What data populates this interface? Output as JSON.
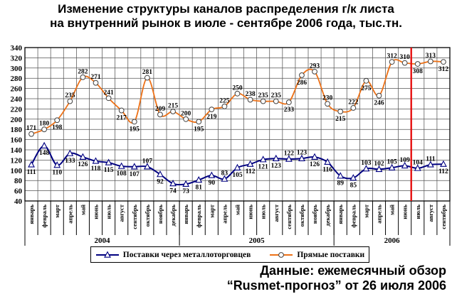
{
  "title": {
    "line1": "Изменение структуры каналов распределения г/к листа",
    "line2": "на внутренний рынок в июле - сентябре 2006 года, тыс.тн."
  },
  "source": {
    "line1": "Данные: ежемесячный обзор",
    "line2": "“Rusmet-прогноз” от 26 июля 2006"
  },
  "chart_data": {
    "type": "line",
    "title": "Изменение структуры каналов распределения г/к листа на внутренний рынок в июле - сентябре 2006 года, тыс.тн.",
    "grid": true,
    "legend_position": "bottom",
    "y_axis": {
      "min": 40,
      "max": 340,
      "step": 20
    },
    "categories": [
      "январь",
      "февраль",
      "март",
      "апрель",
      "май",
      "июнь",
      "июль",
      "август",
      "сентябрь",
      "октябрь",
      "ноябрь",
      "декабрь",
      "январь",
      "февраль",
      "март",
      "апрель",
      "май",
      "июнь",
      "июль",
      "август",
      "сентябрь",
      "октябрь",
      "ноябрь",
      "декабрь",
      "январь",
      "февраль",
      "март",
      "апрель",
      "май",
      "июнь",
      "июль",
      "август",
      "сентябрь"
    ],
    "year_groups": [
      {
        "label": "2004",
        "months": 12
      },
      {
        "label": "2005",
        "months": 12
      },
      {
        "label": "2006",
        "months": 9
      }
    ],
    "series": [
      {
        "name": "Поставки через металлоторговцев",
        "color": "#000080",
        "marker": "triangle",
        "values": [
          111,
          148,
          110,
          133,
          126,
          118,
          115,
          108,
          107,
          107,
          92,
          74,
          73,
          81,
          90,
          83,
          105,
          112,
          121,
          123,
          122,
          123,
          126,
          116,
          89,
          85,
          103,
          102,
          105,
          109,
          104,
          111,
          112
        ],
        "label_sides": [
          "below",
          "below",
          "below",
          "below",
          "below",
          "below",
          "below",
          "below",
          "below",
          "above",
          "below",
          "below",
          "below",
          "below",
          "below",
          "above",
          "below",
          "below",
          "below",
          "below",
          "above",
          "above",
          "below",
          "below",
          "below",
          "below",
          "above",
          "above",
          "above",
          "above",
          "above",
          "above",
          "below"
        ]
      },
      {
        "name": "Прямые поставки",
        "color": "#ED7117",
        "marker": "circle",
        "values": [
          171,
          180,
          198,
          235,
          282,
          271,
          241,
          217,
          195,
          281,
          209,
          215,
          200,
          195,
          219,
          225,
          250,
          238,
          235,
          235,
          233,
          286,
          293,
          230,
          215,
          222,
          275,
          246,
          312,
          310,
          308,
          313,
          312
        ],
        "label_sides": [
          "above",
          "above",
          "below",
          "above",
          "above",
          "above",
          "above",
          "below",
          "below",
          "above",
          "above",
          "above",
          "above",
          "below",
          "below",
          "above",
          "above",
          "above",
          "above",
          "above",
          "below",
          "below",
          "above",
          "above",
          "below",
          "above",
          "below",
          "below",
          "above",
          "above",
          "below",
          "above",
          "below"
        ]
      }
    ],
    "forecast_line": {
      "boundary_index": 30,
      "color": "#E61010"
    }
  }
}
